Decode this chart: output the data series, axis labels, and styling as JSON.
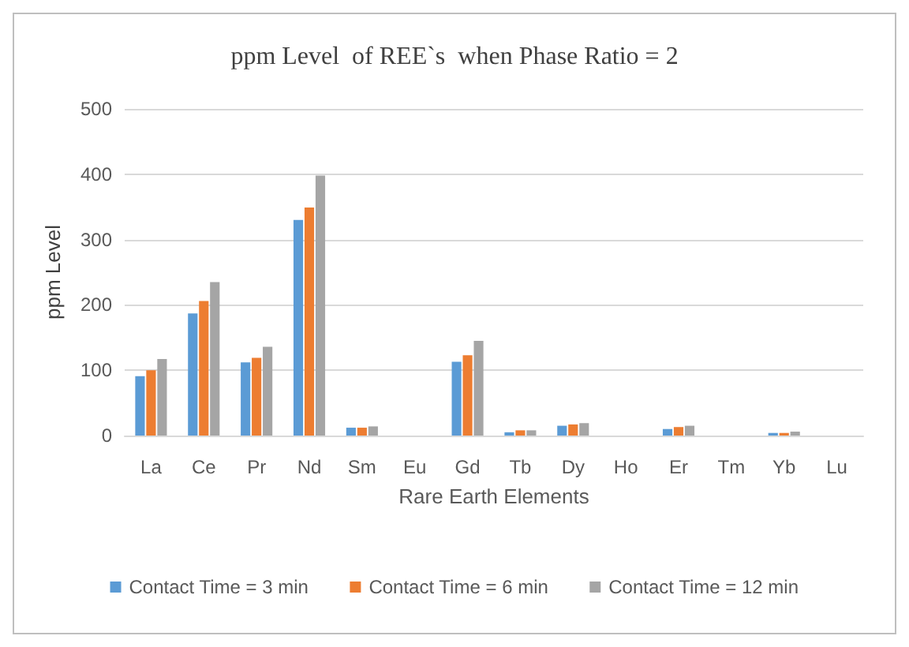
{
  "chart_data": {
    "type": "bar",
    "title": "ppm Level  of REE`s  when Phase Ratio = 2",
    "xlabel": "Rare Earth Elements",
    "ylabel": "ppm Level",
    "categories": [
      "La",
      "Ce",
      "Pr",
      "Nd",
      "Sm",
      "Eu",
      "Gd",
      "Tb",
      "Dy",
      "Ho",
      "Er",
      "Tm",
      "Yb",
      "Lu"
    ],
    "series": [
      {
        "name": "Contact Time = 3 min",
        "color": "#5b9bd5",
        "values": [
          91,
          187,
          112,
          330,
          12,
          null,
          113,
          5,
          15,
          null,
          10,
          null,
          4,
          null
        ]
      },
      {
        "name": "Contact Time = 6 min",
        "color": "#ed7d31",
        "values": [
          100,
          206,
          119,
          349,
          12,
          null,
          123,
          8,
          17,
          null,
          13,
          null,
          4,
          null
        ]
      },
      {
        "name": "Contact Time = 12 min",
        "color": "#a5a5a5",
        "values": [
          117,
          235,
          136,
          398,
          14,
          null,
          145,
          8,
          19,
          null,
          15,
          null,
          6,
          null
        ]
      }
    ],
    "ylim": [
      0,
      500
    ],
    "yticks": [
      0,
      100,
      200,
      300,
      400,
      500
    ],
    "grid": "y",
    "legend": "bottom"
  }
}
